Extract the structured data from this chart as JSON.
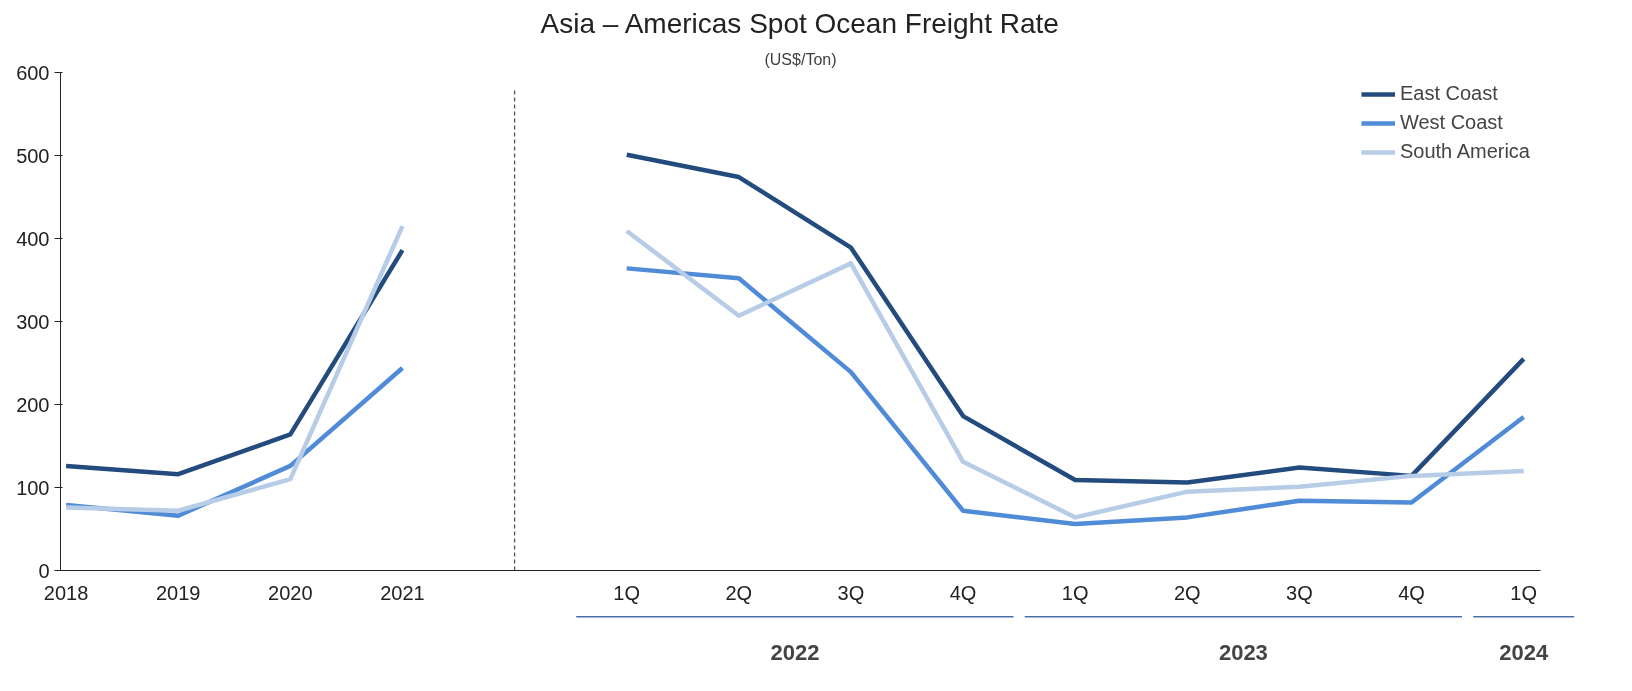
{
  "chart_data": {
    "type": "line",
    "title": "Asia – Americas Spot Ocean Freight Rate",
    "subtitle": "(US$/Ton)",
    "categories": [
      "2018",
      "2019",
      "2020",
      "2021",
      null,
      "1Q",
      "2Q",
      "3Q",
      "4Q",
      "1Q",
      "2Q",
      "3Q",
      "4Q",
      "1Q"
    ],
    "series": [
      {
        "name": "East Coast",
        "color": "#244b7d",
        "values": [
          126,
          116,
          164,
          386,
          null,
          501,
          474,
          389,
          186,
          109,
          106,
          124,
          114,
          255
        ]
      },
      {
        "name": "West Coast",
        "color": "#4f8bd6",
        "values": [
          79,
          66,
          126,
          244,
          null,
          364,
          352,
          239,
          72,
          56,
          64,
          84,
          82,
          185
        ]
      },
      {
        "name": "South America",
        "color": "#b7cce6",
        "values": [
          76,
          72,
          110,
          415,
          null,
          409,
          307,
          370,
          131,
          64,
          95,
          101,
          114,
          120
        ]
      }
    ],
    "ylim": [
      0,
      600
    ],
    "yticks": [
      0,
      100,
      200,
      300,
      400,
      500,
      600
    ],
    "annotations": [
      "2022",
      "2023",
      "2024"
    ],
    "legend": "top right",
    "marker": "none",
    "line_style": "solid"
  }
}
